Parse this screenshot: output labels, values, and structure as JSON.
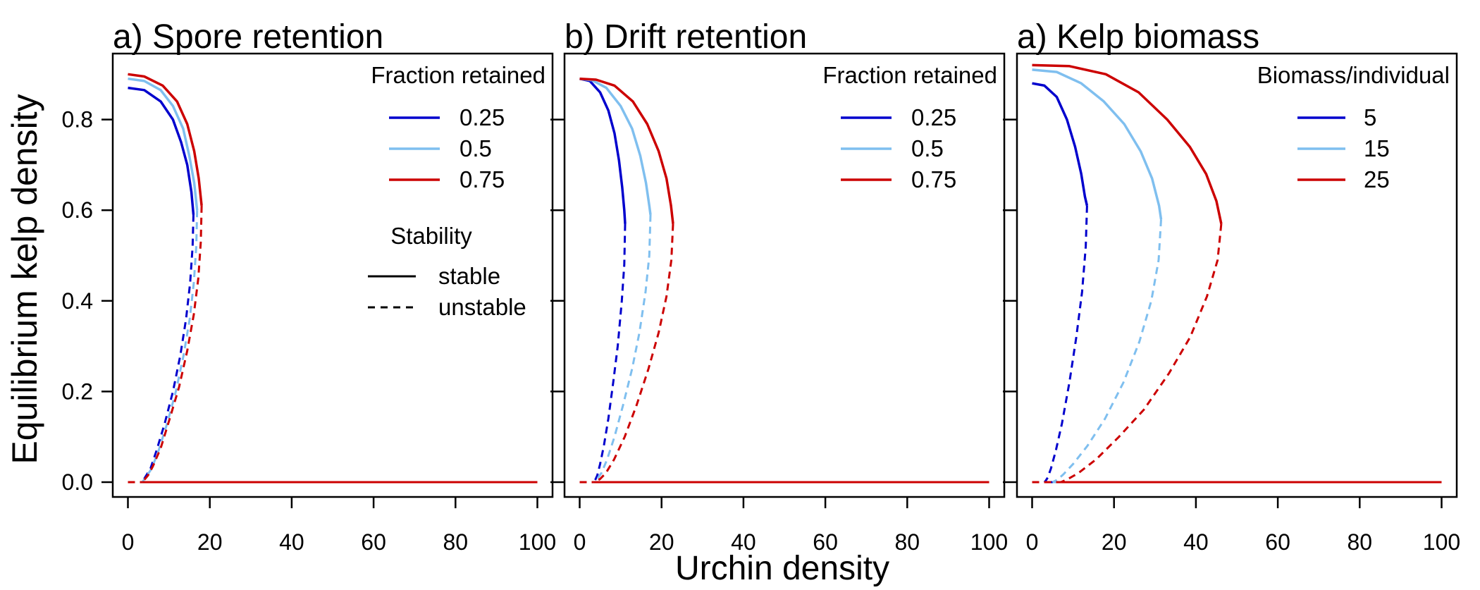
{
  "figure": {
    "xlabel": "Urchin density",
    "ylabel": "Equilibrium kelp density",
    "x_ticks": [
      "0",
      "20",
      "40",
      "60",
      "80",
      "100"
    ],
    "y_ticks": [
      "0.0",
      "0.2",
      "0.4",
      "0.6",
      "0.8"
    ],
    "stability_legend": {
      "title": "Stability",
      "items": [
        {
          "label": "stable",
          "dash": "solid"
        },
        {
          "label": "unstable",
          "dash": "dashed"
        }
      ]
    }
  },
  "chart_data": [
    {
      "type": "line",
      "title": "a) Spore retention",
      "xlabel": "Urchin density",
      "ylabel": "Equilibrium kelp density",
      "xlim": [
        0,
        100
      ],
      "ylim": [
        0,
        0.9
      ],
      "legend_title": "Fraction retained",
      "legend_placement": "top-right",
      "series": [
        {
          "name": "0.25",
          "color": "#0000CD",
          "stable_upper": {
            "x": [
              0,
              4,
              8,
              11,
              13,
              14.5,
              15.5,
              16
            ],
            "y": [
              0.87,
              0.865,
              0.84,
              0.8,
              0.75,
              0.7,
              0.64,
              0.59
            ]
          },
          "unstable_middle": {
            "x": [
              16,
              15.8,
              15.2,
              14.2,
              12.8,
              11,
              9,
              7,
              5.5,
              4.5,
              3.8,
              3.5
            ],
            "y": [
              0.59,
              0.52,
              0.44,
              0.36,
              0.28,
              0.2,
              0.13,
              0.07,
              0.03,
              0.015,
              0.005,
              0
            ]
          },
          "zero_branch": {
            "x_unstable": [
              0,
              3.5
            ],
            "x_stable": [
              3.5,
              100
            ],
            "y": 0
          }
        },
        {
          "name": "0.5",
          "color": "#7FBFEF",
          "stable_upper": {
            "x": [
              0,
              4,
              8,
              11,
              13.5,
              15,
              16.2,
              16.9
            ],
            "y": [
              0.89,
              0.885,
              0.865,
              0.83,
              0.78,
              0.72,
              0.66,
              0.6
            ]
          },
          "unstable_middle": {
            "x": [
              16.9,
              16.7,
              16.1,
              15.1,
              13.6,
              11.7,
              9.6,
              7.5,
              5.8,
              4.7,
              3.9,
              3.5
            ],
            "y": [
              0.6,
              0.52,
              0.44,
              0.36,
              0.28,
              0.2,
              0.13,
              0.07,
              0.03,
              0.015,
              0.005,
              0
            ]
          },
          "zero_branch": {
            "x_unstable": [
              0,
              3.5
            ],
            "x_stable": [
              3.5,
              100
            ],
            "y": 0
          }
        },
        {
          "name": "0.75",
          "color": "#CC0000",
          "stable_upper": {
            "x": [
              0,
              4,
              8.5,
              12,
              14.5,
              16.2,
              17.3,
              18
            ],
            "y": [
              0.9,
              0.895,
              0.875,
              0.84,
              0.79,
              0.73,
              0.67,
              0.61
            ]
          },
          "unstable_middle": {
            "x": [
              18,
              17.8,
              17.2,
              16.1,
              14.5,
              12.5,
              10.2,
              8,
              6.1,
              4.9,
              4,
              3.5
            ],
            "y": [
              0.61,
              0.53,
              0.45,
              0.37,
              0.29,
              0.21,
              0.14,
              0.075,
              0.035,
              0.015,
              0.005,
              0
            ]
          },
          "zero_branch": {
            "x_unstable": [
              0,
              3.5
            ],
            "x_stable": [
              3.5,
              100
            ],
            "y": 0
          }
        }
      ]
    },
    {
      "type": "line",
      "title": "b) Drift retention",
      "xlabel": "Urchin density",
      "ylabel": "Equilibrium kelp density",
      "xlim": [
        0,
        100
      ],
      "ylim": [
        0,
        0.9
      ],
      "legend_title": "Fraction retained",
      "legend_placement": "top-right",
      "series": [
        {
          "name": "0.25",
          "color": "#0000CD",
          "stable_upper": {
            "x": [
              0,
              2.5,
              5,
              7,
              8.5,
              9.6,
              10.4,
              10.9,
              11.1
            ],
            "y": [
              0.89,
              0.885,
              0.86,
              0.82,
              0.77,
              0.71,
              0.65,
              0.6,
              0.57
            ]
          },
          "unstable_middle": {
            "x": [
              11.1,
              10.9,
              10.3,
              9.3,
              8.2,
              7,
              5.9,
              5,
              4.3,
              3.8,
              3.5
            ],
            "y": [
              0.57,
              0.48,
              0.4,
              0.3,
              0.22,
              0.14,
              0.08,
              0.04,
              0.015,
              0.005,
              0
            ]
          },
          "zero_branch": {
            "x_unstable": [
              0,
              3.5
            ],
            "x_stable": [
              3.5,
              100
            ],
            "y": 0
          }
        },
        {
          "name": "0.5",
          "color": "#7FBFEF",
          "stable_upper": {
            "x": [
              0,
              3,
              6.5,
              10,
              12.8,
              14.8,
              16.2,
              17,
              17.3
            ],
            "y": [
              0.89,
              0.887,
              0.87,
              0.83,
              0.78,
              0.72,
              0.66,
              0.61,
              0.59
            ]
          },
          "unstable_middle": {
            "x": [
              17.3,
              17,
              16.1,
              14.6,
              12.8,
              10.6,
              8.5,
              6.7,
              5.3,
              4.3,
              3.7,
              3.5
            ],
            "y": [
              0.59,
              0.5,
              0.42,
              0.33,
              0.25,
              0.17,
              0.1,
              0.05,
              0.02,
              0.007,
              0.002,
              0
            ]
          },
          "zero_branch": {
            "x_unstable": [
              0,
              3.5
            ],
            "x_stable": [
              3.5,
              100
            ],
            "y": 0
          }
        },
        {
          "name": "0.75",
          "color": "#CC0000",
          "stable_upper": {
            "x": [
              0,
              4,
              8.5,
              13,
              16.5,
              19.3,
              21.2,
              22.3,
              22.8
            ],
            "y": [
              0.89,
              0.888,
              0.875,
              0.84,
              0.79,
              0.73,
              0.67,
              0.61,
              0.57
            ]
          },
          "unstable_middle": {
            "x": [
              22.8,
              22.4,
              21.2,
              19.3,
              16.8,
              13.9,
              11,
              8.4,
              6.4,
              5,
              4,
              3.5
            ],
            "y": [
              0.57,
              0.49,
              0.41,
              0.33,
              0.25,
              0.17,
              0.1,
              0.05,
              0.02,
              0.007,
              0.002,
              0
            ]
          },
          "zero_branch": {
            "x_unstable": [
              0,
              3.5
            ],
            "x_stable": [
              3.5,
              100
            ],
            "y": 0
          }
        }
      ]
    },
    {
      "type": "line",
      "title": "a) Kelp biomass",
      "xlabel": "Urchin density",
      "ylabel": "Equilibrium kelp density",
      "xlim": [
        0,
        100
      ],
      "ylim": [
        0,
        0.92
      ],
      "legend_title": "Biomass/individual",
      "legend_placement": "top-right",
      "series": [
        {
          "name": "5",
          "color": "#0000CD",
          "stable_upper": {
            "x": [
              0,
              3,
              6,
              8.5,
              10.5,
              12,
              12.9,
              13.4
            ],
            "y": [
              0.88,
              0.875,
              0.85,
              0.8,
              0.74,
              0.68,
              0.63,
              0.61
            ]
          },
          "unstable_middle": {
            "x": [
              13.4,
              13.1,
              12.2,
              10.8,
              9.1,
              7.3,
              5.8,
              4.6,
              3.8,
              3.3,
              3
            ],
            "y": [
              0.61,
              0.52,
              0.42,
              0.32,
              0.22,
              0.13,
              0.07,
              0.03,
              0.01,
              0.003,
              0
            ]
          },
          "zero_branch": {
            "x_unstable": [
              0,
              3
            ],
            "x_stable": [
              3,
              100
            ],
            "y": 0
          }
        },
        {
          "name": "15",
          "color": "#7FBFEF",
          "stable_upper": {
            "x": [
              0,
              6,
              12,
              17.5,
              22.5,
              26.5,
              29.3,
              31,
              31.5
            ],
            "y": [
              0.91,
              0.905,
              0.88,
              0.84,
              0.79,
              0.73,
              0.67,
              0.61,
              0.58
            ]
          },
          "unstable_middle": {
            "x": [
              31.5,
              30.9,
              29.1,
              26.2,
              22.3,
              17.8,
              13.5,
              10,
              7.6,
              6.1,
              5
            ],
            "y": [
              0.58,
              0.49,
              0.4,
              0.31,
              0.22,
              0.14,
              0.08,
              0.04,
              0.017,
              0.005,
              0
            ]
          },
          "zero_branch": {
            "x_unstable": [
              0,
              5
            ],
            "x_stable": [
              5,
              100
            ],
            "y": 0
          }
        },
        {
          "name": "25",
          "color": "#CC0000",
          "stable_upper": {
            "x": [
              0,
              9,
              18,
              26,
              33,
              38.5,
              42.5,
              45,
              46.2
            ],
            "y": [
              0.92,
              0.918,
              0.9,
              0.86,
              0.8,
              0.74,
              0.68,
              0.62,
              0.57
            ]
          },
          "unstable_middle": {
            "x": [
              46.2,
              45.3,
              42.7,
              38.6,
              33.4,
              27.3,
              21.2,
              15.6,
              11.3,
              8.6,
              7
            ],
            "y": [
              0.57,
              0.49,
              0.41,
              0.32,
              0.24,
              0.16,
              0.1,
              0.05,
              0.02,
              0.006,
              0
            ]
          },
          "zero_branch": {
            "x_unstable": [
              0,
              7
            ],
            "x_stable": [
              7,
              100
            ],
            "y": 0
          }
        }
      ]
    }
  ]
}
